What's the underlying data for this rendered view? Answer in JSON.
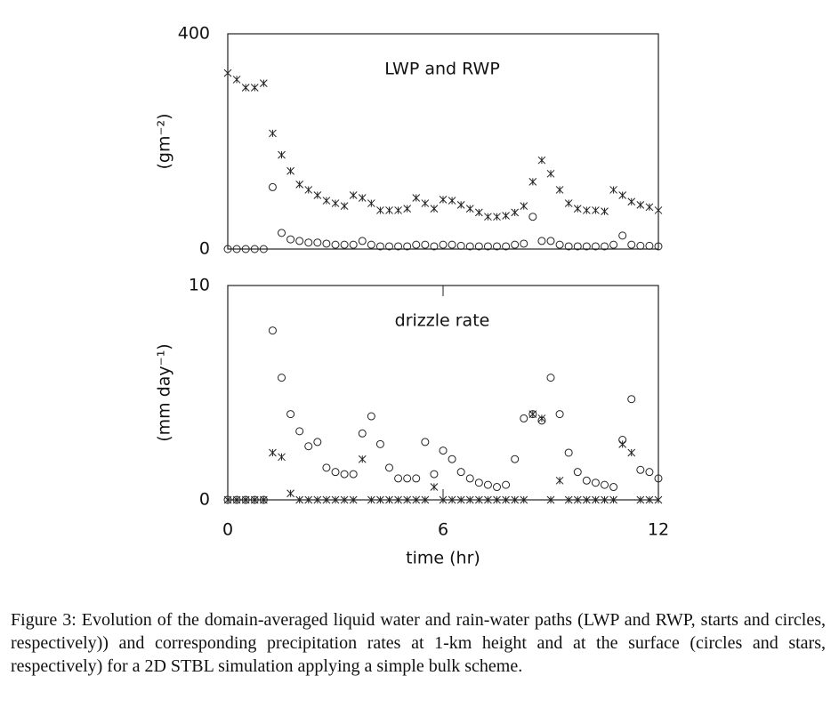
{
  "chart_data": [
    {
      "type": "scatter",
      "annotation": "LWP and RWP",
      "ylabel": "(gm⁻²)",
      "xlim": [
        0,
        12
      ],
      "ylim": [
        0,
        400
      ],
      "yticks": [
        0,
        400
      ],
      "x": [
        0,
        0.25,
        0.5,
        0.75,
        1,
        1.25,
        1.5,
        1.75,
        2,
        2.25,
        2.5,
        2.75,
        3,
        3.25,
        3.5,
        3.75,
        4,
        4.25,
        4.5,
        4.75,
        5,
        5.25,
        5.5,
        5.75,
        6,
        6.25,
        6.5,
        6.75,
        7,
        7.25,
        7.5,
        7.75,
        8,
        8.25,
        8.5,
        8.75,
        9,
        9.25,
        9.5,
        9.75,
        10,
        10.25,
        10.5,
        10.75,
        11,
        11.25,
        11.5,
        11.75,
        12
      ],
      "series": [
        {
          "marker": "star",
          "color": "#222",
          "values": [
            327,
            315,
            300,
            300,
            308,
            215,
            175,
            145,
            120,
            110,
            100,
            90,
            85,
            80,
            100,
            95,
            85,
            72,
            72,
            72,
            75,
            95,
            85,
            75,
            92,
            90,
            82,
            75,
            68,
            60,
            60,
            62,
            68,
            80,
            125,
            165,
            140,
            110,
            85,
            75,
            72,
            72,
            70,
            110,
            100,
            88,
            82,
            78,
            72
          ]
        },
        {
          "marker": "circle",
          "color": "#222",
          "values": [
            0,
            0,
            0,
            0,
            0,
            115,
            30,
            18,
            15,
            12,
            12,
            10,
            8,
            8,
            8,
            15,
            8,
            5,
            5,
            5,
            5,
            8,
            8,
            5,
            8,
            8,
            6,
            5,
            5,
            5,
            5,
            5,
            8,
            10,
            60,
            15,
            15,
            8,
            5,
            5,
            5,
            5,
            5,
            8,
            25,
            8,
            6,
            6,
            5
          ]
        }
      ]
    },
    {
      "type": "scatter",
      "annotation": "drizzle rate",
      "ylabel": "(mm day⁻¹)",
      "xlabel": "time (hr)",
      "xlim": [
        0,
        12
      ],
      "xticks": [
        0,
        6,
        12
      ],
      "ylim": [
        0,
        10
      ],
      "yticks": [
        0,
        10
      ],
      "x": [
        0,
        0.25,
        0.5,
        0.75,
        1,
        1.25,
        1.5,
        1.75,
        2,
        2.25,
        2.5,
        2.75,
        3,
        3.25,
        3.5,
        3.75,
        4,
        4.25,
        4.5,
        4.75,
        5,
        5.25,
        5.5,
        5.75,
        6,
        6.25,
        6.5,
        6.75,
        7,
        7.25,
        7.5,
        7.75,
        8,
        8.25,
        8.5,
        8.75,
        9,
        9.25,
        9.5,
        9.75,
        10,
        10.25,
        10.5,
        10.75,
        11,
        11.25,
        11.5,
        11.75,
        12
      ],
      "series": [
        {
          "marker": "circle",
          "color": "#222",
          "values": [
            0,
            0,
            0,
            0,
            0,
            7.9,
            5.7,
            4.0,
            3.2,
            2.5,
            2.7,
            1.5,
            1.3,
            1.2,
            1.2,
            3.1,
            3.9,
            2.6,
            1.5,
            1.0,
            1.0,
            1.0,
            2.7,
            1.2,
            2.3,
            1.9,
            1.3,
            1.0,
            0.8,
            0.7,
            0.6,
            0.7,
            1.9,
            3.8,
            4.0,
            3.7,
            5.7,
            4.0,
            2.2,
            1.3,
            0.9,
            0.8,
            0.7,
            0.6,
            2.8,
            4.7,
            1.4,
            1.3,
            1.0
          ]
        },
        {
          "marker": "star",
          "color": "#222",
          "values": [
            0,
            0,
            0,
            0,
            0,
            2.2,
            2.0,
            0.3,
            0,
            0,
            0,
            0,
            0,
            0,
            0,
            1.9,
            0,
            0,
            0,
            0,
            0,
            0,
            0,
            0.6,
            0,
            0,
            0,
            0,
            0,
            0,
            0,
            0,
            0,
            0,
            4.0,
            3.8,
            0,
            0.9,
            0,
            0,
            0,
            0,
            0,
            0,
            2.6,
            2.2,
            0,
            0,
            0
          ]
        }
      ]
    }
  ],
  "caption": "Figure 3: Evolution of the domain-averaged liquid water and rain-water paths (LWP and RWP, starts and circles, respectively)) and corresponding precipitation rates at 1-km height and at the surface (circles and stars, respectively) for a 2D STBL simulation applying a simple bulk scheme."
}
